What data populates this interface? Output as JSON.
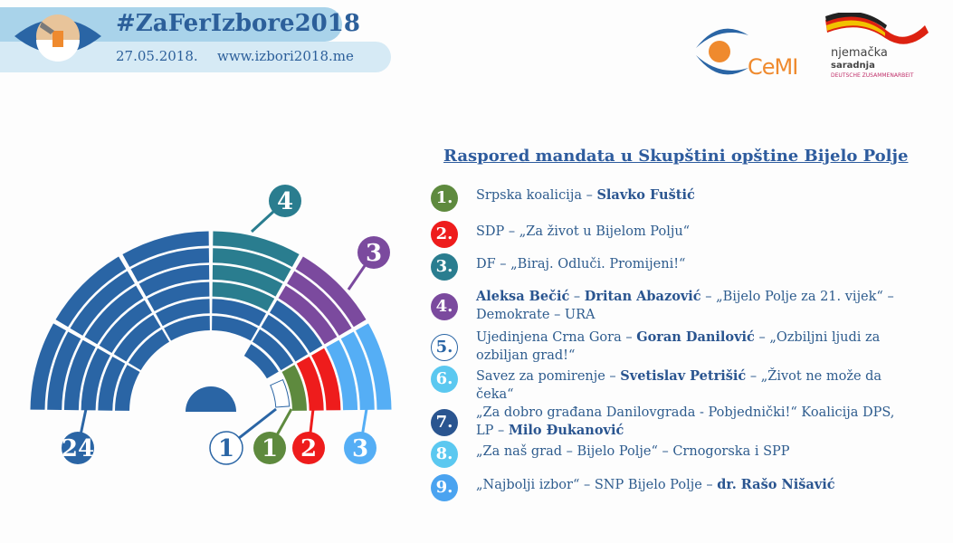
{
  "header": {
    "hashtag": "#ZaFerIzbore2018",
    "date": "27.05.2018.",
    "url": "www.izbori2018.me"
  },
  "logos": {
    "cemi": "CeMI",
    "giz_line1": "njemačka",
    "giz_line2": "saradnja",
    "giz_line3": "DEUTSCHE ZUSAMMENARBEIT"
  },
  "title": "Raspored mandata u Skupštini opštine Bijelo Polje",
  "chart_data": {
    "type": "parliament",
    "total_seats": 38,
    "groups": [
      {
        "label": "24",
        "seats": 24,
        "color": "#2a65a5"
      },
      {
        "label": "4",
        "seats": 4,
        "color": "#2a7d8f"
      },
      {
        "label": "3",
        "seats": 3,
        "color": "#7b4a9e"
      },
      {
        "label": "1",
        "seats": 1,
        "color": "#ffffff"
      },
      {
        "label": "1",
        "seats": 1,
        "color": "#5e8a3e"
      },
      {
        "label": "2",
        "seats": 2,
        "color": "#ee1c1c"
      },
      {
        "label": "3",
        "seats": 3,
        "color": "#55aef5"
      }
    ]
  },
  "legend": [
    {
      "num": "1.",
      "color": "#5e8a3e",
      "parts": [
        {
          "t": "Srpska koalicija – ",
          "b": false
        },
        {
          "t": "Slavko Fuštić",
          "b": true
        }
      ]
    },
    {
      "num": "2.",
      "color": "#ee1c1c",
      "parts": [
        {
          "t": "SDP – „Za život u Bijelom Polju“",
          "b": false
        }
      ]
    },
    {
      "num": "3.",
      "color": "#2a7d8f",
      "parts": [
        {
          "t": "DF – „Biraj. Odluči. Promijeni!“",
          "b": false
        }
      ]
    },
    {
      "num": "4.",
      "color": "#7b4a9e",
      "parts": [
        {
          "t": "Aleksa Bečić",
          "b": true
        },
        {
          "t": " – ",
          "b": false
        },
        {
          "t": "Dritan Abazović",
          "b": true
        },
        {
          "t": " – „Bijelo Polje za 21. vijek“ – Demokrate – URA",
          "b": false
        }
      ]
    },
    {
      "num": "5.",
      "color": "#ffffff",
      "parts": [
        {
          "t": "Ujedinjena Crna Gora – ",
          "b": false
        },
        {
          "t": "Goran Danilović",
          "b": true
        },
        {
          "t": " – „Ozbiljni ljudi za ozbiljan grad!“",
          "b": false
        }
      ]
    },
    {
      "num": "6.",
      "color": "#5bc8f0",
      "parts": [
        {
          "t": "Savez za pomirenje – ",
          "b": false
        },
        {
          "t": "Svetislav Petrišić",
          "b": true
        },
        {
          "t": " – „Život ne može da čeka“",
          "b": false
        }
      ]
    },
    {
      "num": "7.",
      "color": "#2a5590",
      "parts": [
        {
          "t": "„Za dobro građana Danilovgrada - Pobjednički!“ Koalicija DPS, LP – ",
          "b": false
        },
        {
          "t": "Milo Đukanović",
          "b": true
        }
      ]
    },
    {
      "num": "8.",
      "color": "#5bc8f0",
      "parts": [
        {
          "t": "„Za naš grad – Bijelo Polje“ – Crnogorska i SPP",
          "b": false
        }
      ]
    },
    {
      "num": "9.",
      "color": "#4aa3f0",
      "parts": [
        {
          "t": "„Najbolji izbor“ – SNP Bijelo Polje – ",
          "b": false
        },
        {
          "t": "dr. Rašo Nišavić",
          "b": true
        }
      ]
    }
  ]
}
